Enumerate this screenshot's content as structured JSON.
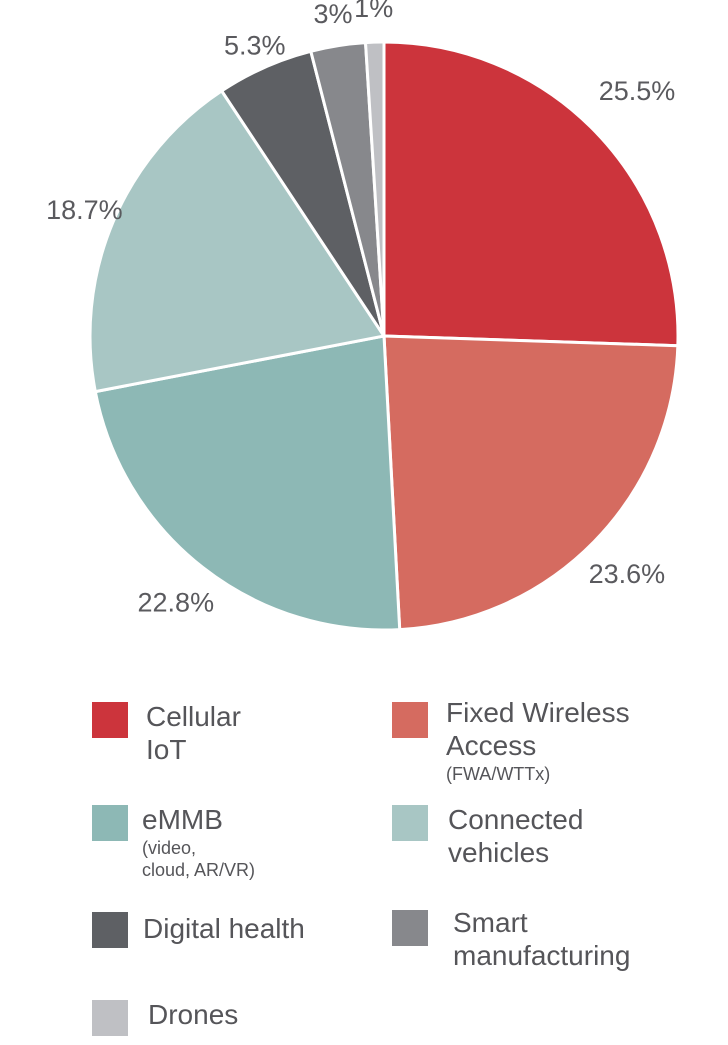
{
  "chart_data": {
    "type": "pie",
    "slices": [
      {
        "label": "Cellular\nIoT",
        "sublabel": "",
        "value": 25.5,
        "value_label": "25.5%",
        "color": "#cc343c"
      },
      {
        "label": "Fixed Wireless\nAccess",
        "sublabel": "(FWA/WTTx)",
        "value": 23.6,
        "value_label": "23.6%",
        "color": "#d56b60"
      },
      {
        "label": "eMMB",
        "sublabel": "(video,\ncloud, AR/VR)",
        "value": 22.8,
        "value_label": "22.8%",
        "color": "#8db8b5"
      },
      {
        "label": "Connected\nvehicles",
        "sublabel": "",
        "value": 18.7,
        "value_label": "18.7%",
        "color": "#a8c6c4"
      },
      {
        "label": "Digital health",
        "sublabel": "",
        "value": 5.3,
        "value_label": "5.3%",
        "color": "#5e6064"
      },
      {
        "label": "Smart\nmanufacturing",
        "sublabel": "",
        "value": 3,
        "value_label": "3%",
        "color": "#87888c"
      },
      {
        "label": "Drones",
        "sublabel": "",
        "value": 1,
        "value_label": "1%",
        "color": "#bfc0c4"
      }
    ],
    "legend_position": "bottom"
  }
}
